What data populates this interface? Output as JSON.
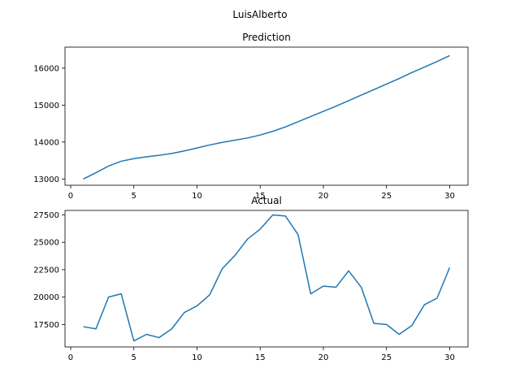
{
  "figure_title": "LuisAlberto",
  "colors": {
    "line": "#1f77b4",
    "axes": "#000000",
    "background": "#ffffff"
  },
  "chart_data": [
    {
      "type": "line",
      "title": "Prediction",
      "xlabel": "",
      "ylabel": "",
      "grid": false,
      "legend": "none",
      "xlim": [
        -0.45,
        31.45
      ],
      "ylim": [
        12830,
        16570
      ],
      "xticks": [
        0,
        5,
        10,
        15,
        20,
        25,
        30
      ],
      "xtick_labels": [
        "0",
        "5",
        "10",
        "15",
        "20",
        "25",
        "30"
      ],
      "yticks": [
        13000,
        14000,
        15000,
        16000
      ],
      "ytick_labels": [
        "13000",
        "14000",
        "15000",
        "16000"
      ],
      "series": [
        {
          "x": [
            1,
            2,
            3,
            4,
            5,
            6,
            7,
            8,
            9,
            10,
            11,
            12,
            13,
            14,
            15,
            16,
            17,
            18,
            19,
            20,
            21,
            22,
            23,
            24,
            25,
            26,
            27,
            28,
            29,
            30
          ],
          "values": [
            13000,
            13170,
            13350,
            13480,
            13550,
            13600,
            13640,
            13690,
            13760,
            13840,
            13920,
            13990,
            14050,
            14110,
            14190,
            14290,
            14410,
            14550,
            14690,
            14830,
            14970,
            15120,
            15270,
            15420,
            15570,
            15720,
            15880,
            16030,
            16180,
            16340
          ]
        }
      ]
    },
    {
      "type": "line",
      "title": "Actual",
      "xlabel": "",
      "ylabel": "",
      "grid": false,
      "legend": "none",
      "xlim": [
        -0.45,
        31.45
      ],
      "ylim": [
        15450,
        27910
      ],
      "xticks": [
        0,
        5,
        10,
        15,
        20,
        25,
        30
      ],
      "xtick_labels": [
        "0",
        "5",
        "10",
        "15",
        "20",
        "25",
        "30"
      ],
      "yticks": [
        17500,
        20000,
        22500,
        25000,
        27500
      ],
      "ytick_labels": [
        "17500",
        "20000",
        "22500",
        "25000",
        "27500"
      ],
      "series": [
        {
          "x": [
            1,
            2,
            3,
            4,
            5,
            6,
            7,
            8,
            9,
            10,
            11,
            12,
            13,
            14,
            15,
            16,
            17,
            18,
            19,
            20,
            21,
            22,
            23,
            24,
            25,
            26,
            27,
            28,
            29,
            30
          ],
          "values": [
            17300,
            17100,
            20000,
            20300,
            16000,
            16600,
            16300,
            17100,
            18600,
            19200,
            20200,
            22600,
            23800,
            25300,
            26200,
            27500,
            27400,
            25700,
            20300,
            21000,
            20900,
            22400,
            20900,
            17600,
            17500,
            16600,
            17400,
            19300,
            19900,
            22700
          ]
        }
      ]
    }
  ]
}
